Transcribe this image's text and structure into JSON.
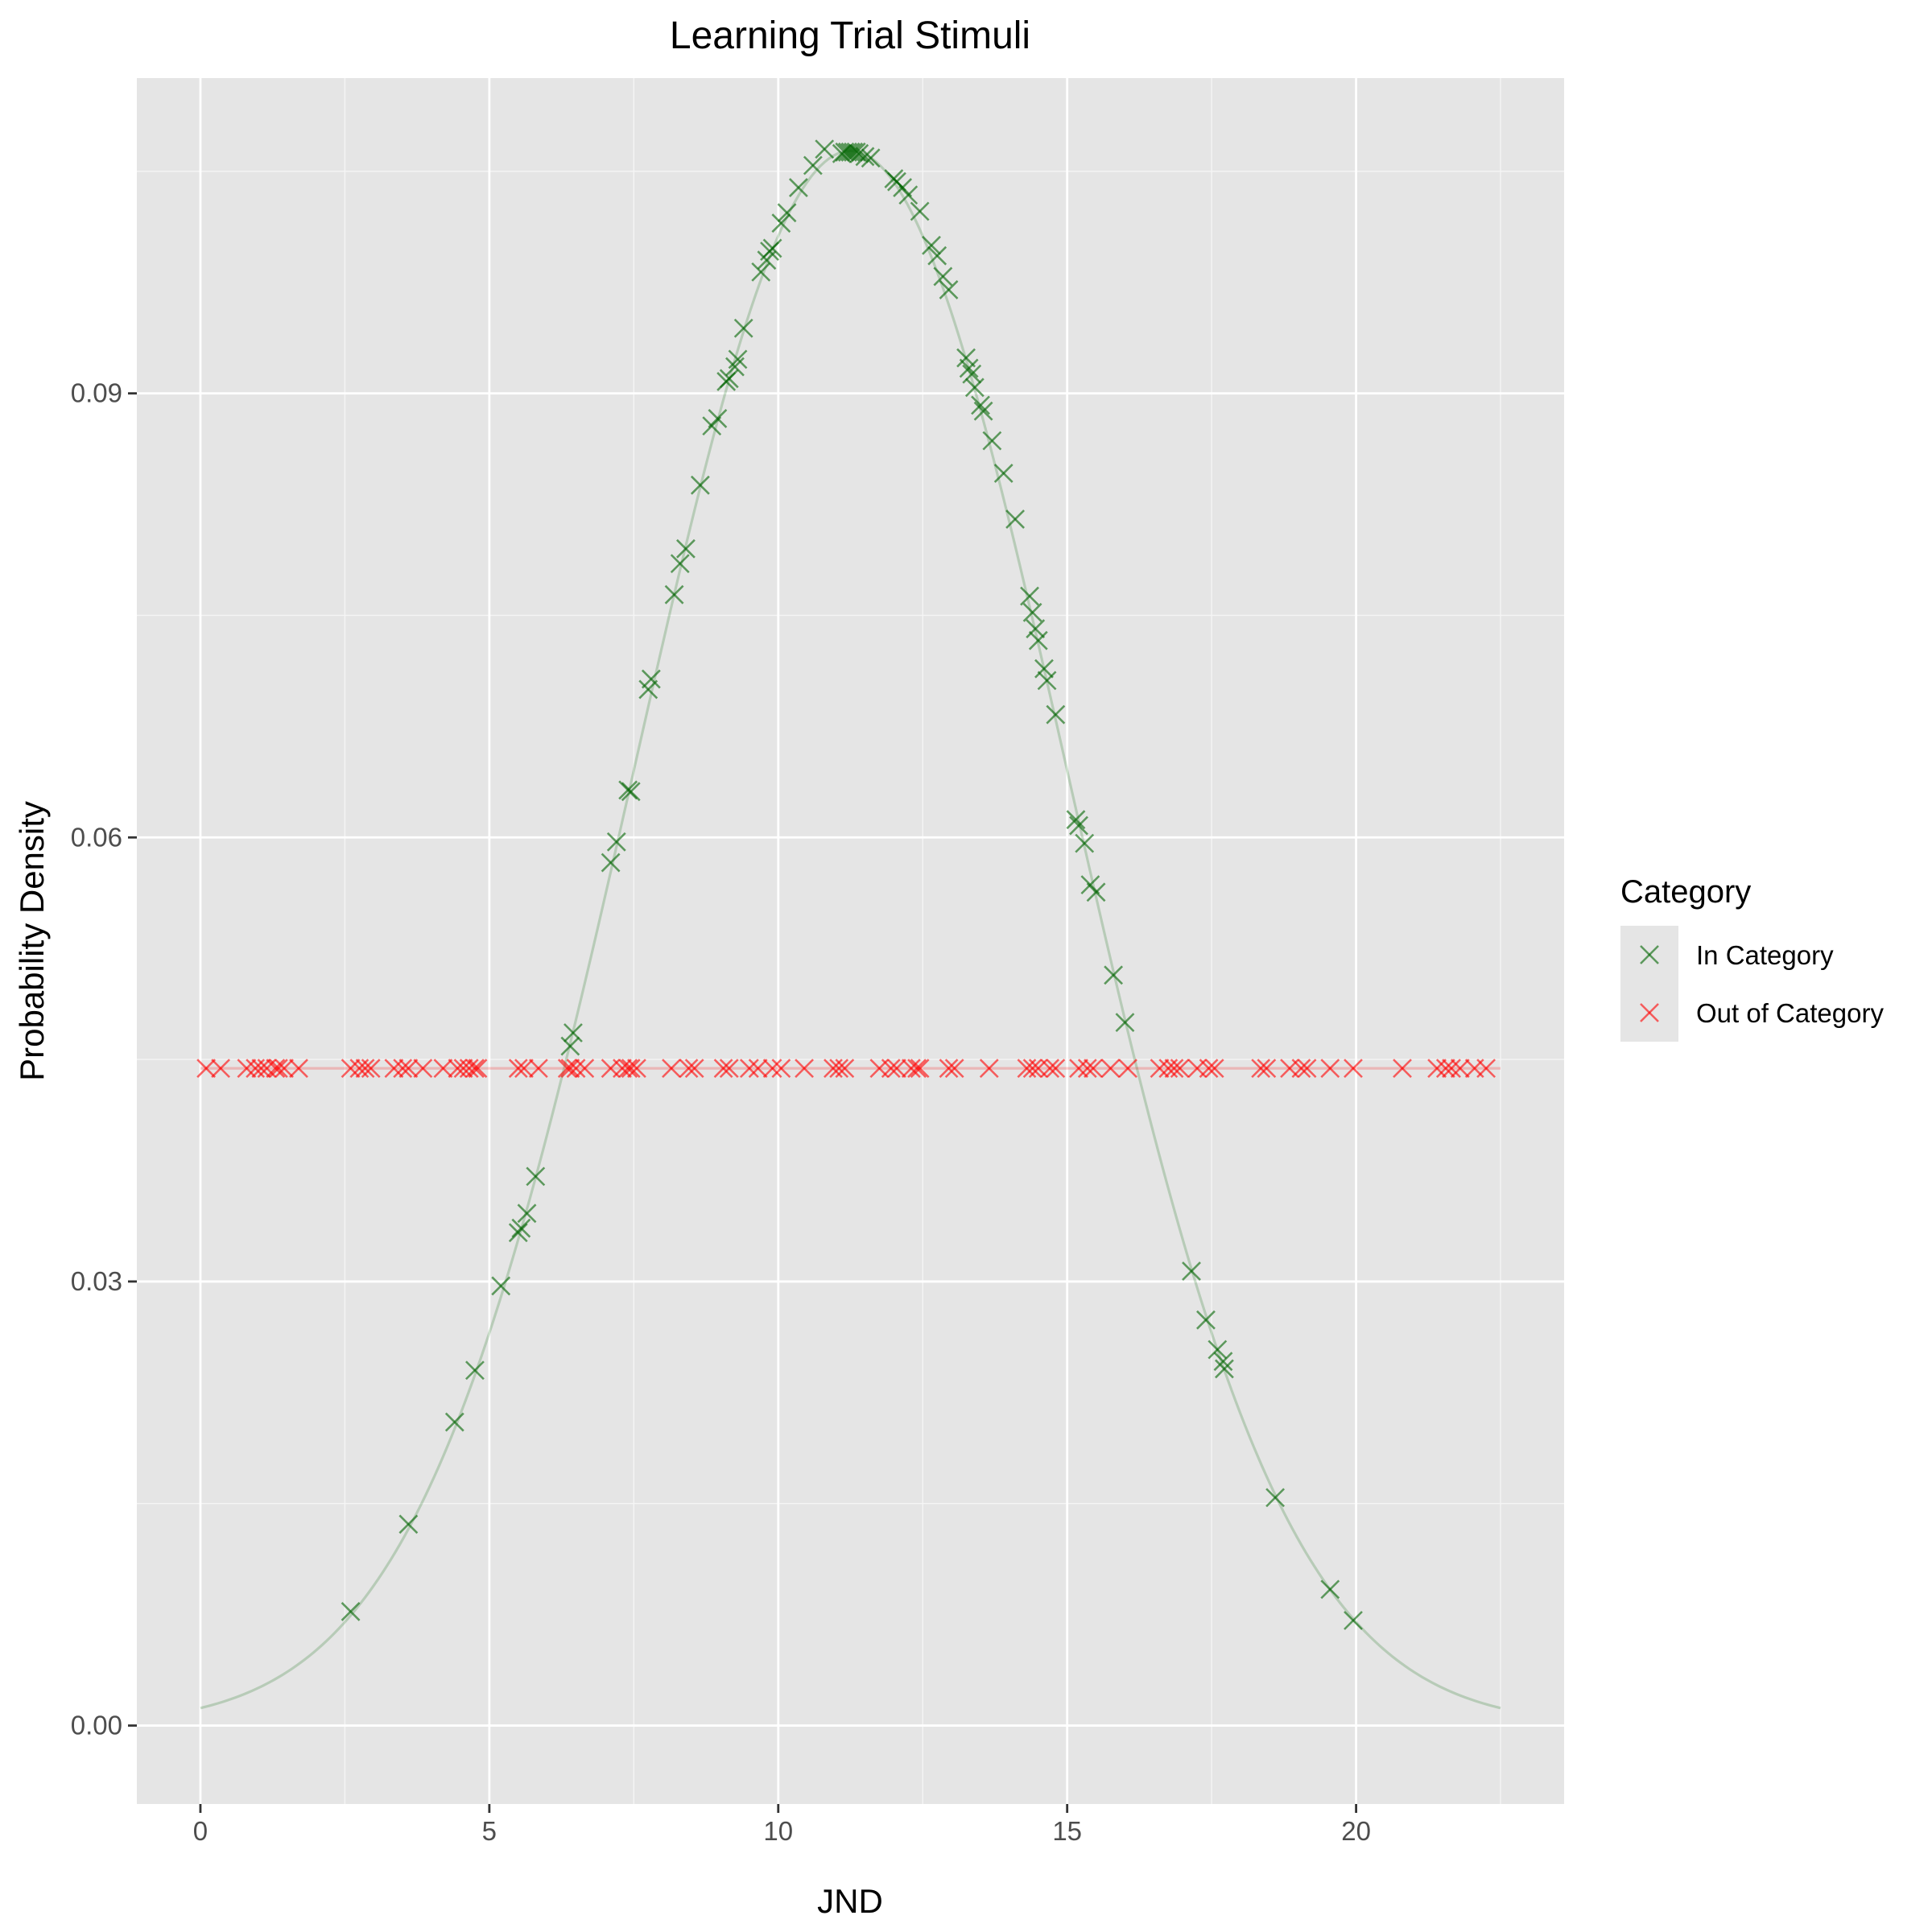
{
  "chart_data": {
    "type": "scatter",
    "title": "Learning Trial Stimuli",
    "xlabel": "JND",
    "ylabel": "Probability Density",
    "xlim": [
      -1.1,
      23.6
    ],
    "ylim": [
      -0.0053,
      0.1113
    ],
    "x_ticks": [
      0,
      5,
      10,
      15,
      20
    ],
    "x_tick_labels": [
      "0",
      "5",
      "10",
      "15",
      "20"
    ],
    "y_ticks": [
      0.0,
      0.03,
      0.06,
      0.09
    ],
    "y_tick_labels": [
      "0.00",
      "0.03",
      "0.06",
      "0.09"
    ],
    "grid": true,
    "legend": {
      "title": "Category",
      "position": "right"
    },
    "curve": {
      "type": "normal",
      "mean": 11.25,
      "sd": 3.75,
      "x_range": [
        0,
        22.5
      ],
      "color": "#006400"
    },
    "flat_line": {
      "y": 0.0444,
      "x_range": [
        0,
        22.5
      ],
      "color": "#ff0000"
    },
    "series": [
      {
        "name": "In Category",
        "color": "#006400",
        "marker": "x",
        "x": [
          2.6,
          3.6,
          4.4,
          4.75,
          5.2,
          5.5,
          5.55,
          5.65,
          5.8,
          6.4,
          6.45,
          7.1,
          7.2,
          7.4,
          7.45,
          7.75,
          7.8,
          8.2,
          8.3,
          8.4,
          8.65,
          8.85,
          8.95,
          9.1,
          9.15,
          9.25,
          9.3,
          9.4,
          9.7,
          9.8,
          9.85,
          9.9,
          10.05,
          10.15,
          10.35,
          10.6,
          10.8,
          11.1,
          11.15,
          11.2,
          11.25,
          11.3,
          11.35,
          11.4,
          11.5,
          11.6,
          12.0,
          12.05,
          12.15,
          12.25,
          12.45,
          12.65,
          12.75,
          12.85,
          12.95,
          13.25,
          13.3,
          13.35,
          13.4,
          13.5,
          13.55,
          13.7,
          13.9,
          14.1,
          14.35,
          14.4,
          14.45,
          14.5,
          14.6,
          14.65,
          14.8,
          15.15,
          15.2,
          15.3,
          15.4,
          15.5,
          15.8,
          16.0,
          17.15,
          17.4,
          17.6,
          17.7,
          17.72,
          18.6,
          19.55,
          19.95
        ],
        "y": [
          0.0077,
          0.0136,
          0.0205,
          0.024,
          0.0297,
          0.0333,
          0.0336,
          0.0346,
          0.0371,
          0.0459,
          0.0468,
          0.0583,
          0.0597,
          0.0632,
          0.0631,
          0.07,
          0.0707,
          0.0764,
          0.0785,
          0.0795,
          0.0838,
          0.0878,
          0.0883,
          0.0908,
          0.091,
          0.0918,
          0.0923,
          0.0944,
          0.0982,
          0.099,
          0.0996,
          0.0998,
          0.1015,
          0.1022,
          0.1039,
          0.1054,
          0.1065,
          0.1062,
          0.1063,
          0.1063,
          0.1063,
          0.1063,
          0.1063,
          0.1062,
          0.106,
          0.1059,
          0.1045,
          0.1043,
          0.1039,
          0.1034,
          0.1023,
          0.1,
          0.0993,
          0.0979,
          0.097,
          0.0924,
          0.0917,
          0.0913,
          0.0904,
          0.0892,
          0.0888,
          0.0868,
          0.0846,
          0.0815,
          0.0763,
          0.0752,
          0.0741,
          0.0733,
          0.0714,
          0.0706,
          0.0683,
          0.0612,
          0.0608,
          0.0596,
          0.0568,
          0.0563,
          0.0507,
          0.0475,
          0.0307,
          0.0274,
          0.0254,
          0.0246,
          0.0241,
          0.0154,
          0.0092,
          0.0071
        ]
      },
      {
        "name": "Out of Category",
        "color": "#ff0000",
        "marker": "x",
        "x": [
          0.1,
          0.35,
          0.8,
          0.95,
          1.05,
          1.15,
          1.3,
          1.35,
          1.45,
          1.7,
          2.6,
          2.75,
          2.85,
          2.95,
          3.35,
          3.5,
          3.6,
          3.85,
          4.2,
          4.45,
          4.55,
          4.65,
          4.75,
          4.8,
          5.5,
          5.6,
          5.85,
          6.35,
          6.4,
          6.5,
          6.65,
          7.1,
          7.3,
          7.4,
          7.45,
          7.55,
          8.15,
          8.45,
          8.55,
          9.05,
          9.15,
          9.5,
          9.65,
          9.9,
          10.05,
          10.45,
          10.95,
          11.05,
          11.15,
          11.75,
          11.95,
          12.05,
          12.3,
          12.4,
          12.45,
          12.95,
          13.05,
          13.65,
          14.3,
          14.4,
          14.5,
          14.7,
          14.8,
          15.2,
          15.35,
          15.45,
          15.75,
          16.05,
          16.6,
          16.75,
          16.85,
          16.95,
          17.25,
          17.45,
          17.55,
          18.35,
          18.45,
          18.85,
          19.05,
          19.15,
          19.55,
          19.95,
          20.8,
          21.4,
          21.55,
          21.65,
          21.8,
          22.05,
          22.25
        ]
      }
    ]
  },
  "legend_text": {
    "title": "Category",
    "items": [
      "In Category",
      "Out of Category"
    ]
  }
}
